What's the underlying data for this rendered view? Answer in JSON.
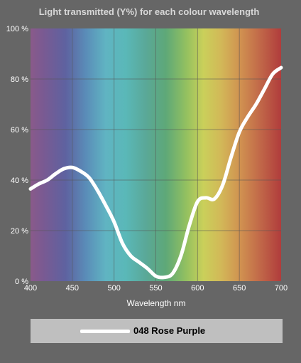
{
  "chart_data": {
    "type": "line",
    "title": "Light transmitted (Y%) for each colour wavelength",
    "xlabel": "Wavelength nm",
    "ylabel": "",
    "xlim": [
      400,
      700
    ],
    "ylim": [
      0,
      100
    ],
    "x_ticks": [
      400,
      450,
      500,
      550,
      600,
      650,
      700
    ],
    "y_ticks": [
      0,
      20,
      40,
      60,
      80,
      100
    ],
    "y_tick_suffix": " %",
    "grid": true,
    "background": "visible-spectrum-gradient",
    "legend_placement": "bottom",
    "series": [
      {
        "name": "048 Rose Purple",
        "color": "#ffffff",
        "x": [
          400,
          410,
          420,
          430,
          440,
          450,
          460,
          470,
          480,
          490,
          500,
          510,
          520,
          530,
          540,
          550,
          560,
          570,
          580,
          590,
          600,
          610,
          620,
          630,
          640,
          650,
          660,
          670,
          680,
          690,
          700
        ],
        "y": [
          36.5,
          38.5,
          40,
          42.5,
          44.5,
          45,
          43.5,
          41,
          36,
          30,
          23.5,
          15,
          10,
          7.5,
          5,
          2,
          1.5,
          3,
          10,
          22,
          31.5,
          33,
          32.5,
          38,
          49,
          59,
          65,
          70,
          76,
          82,
          84.5
        ]
      }
    ]
  }
}
